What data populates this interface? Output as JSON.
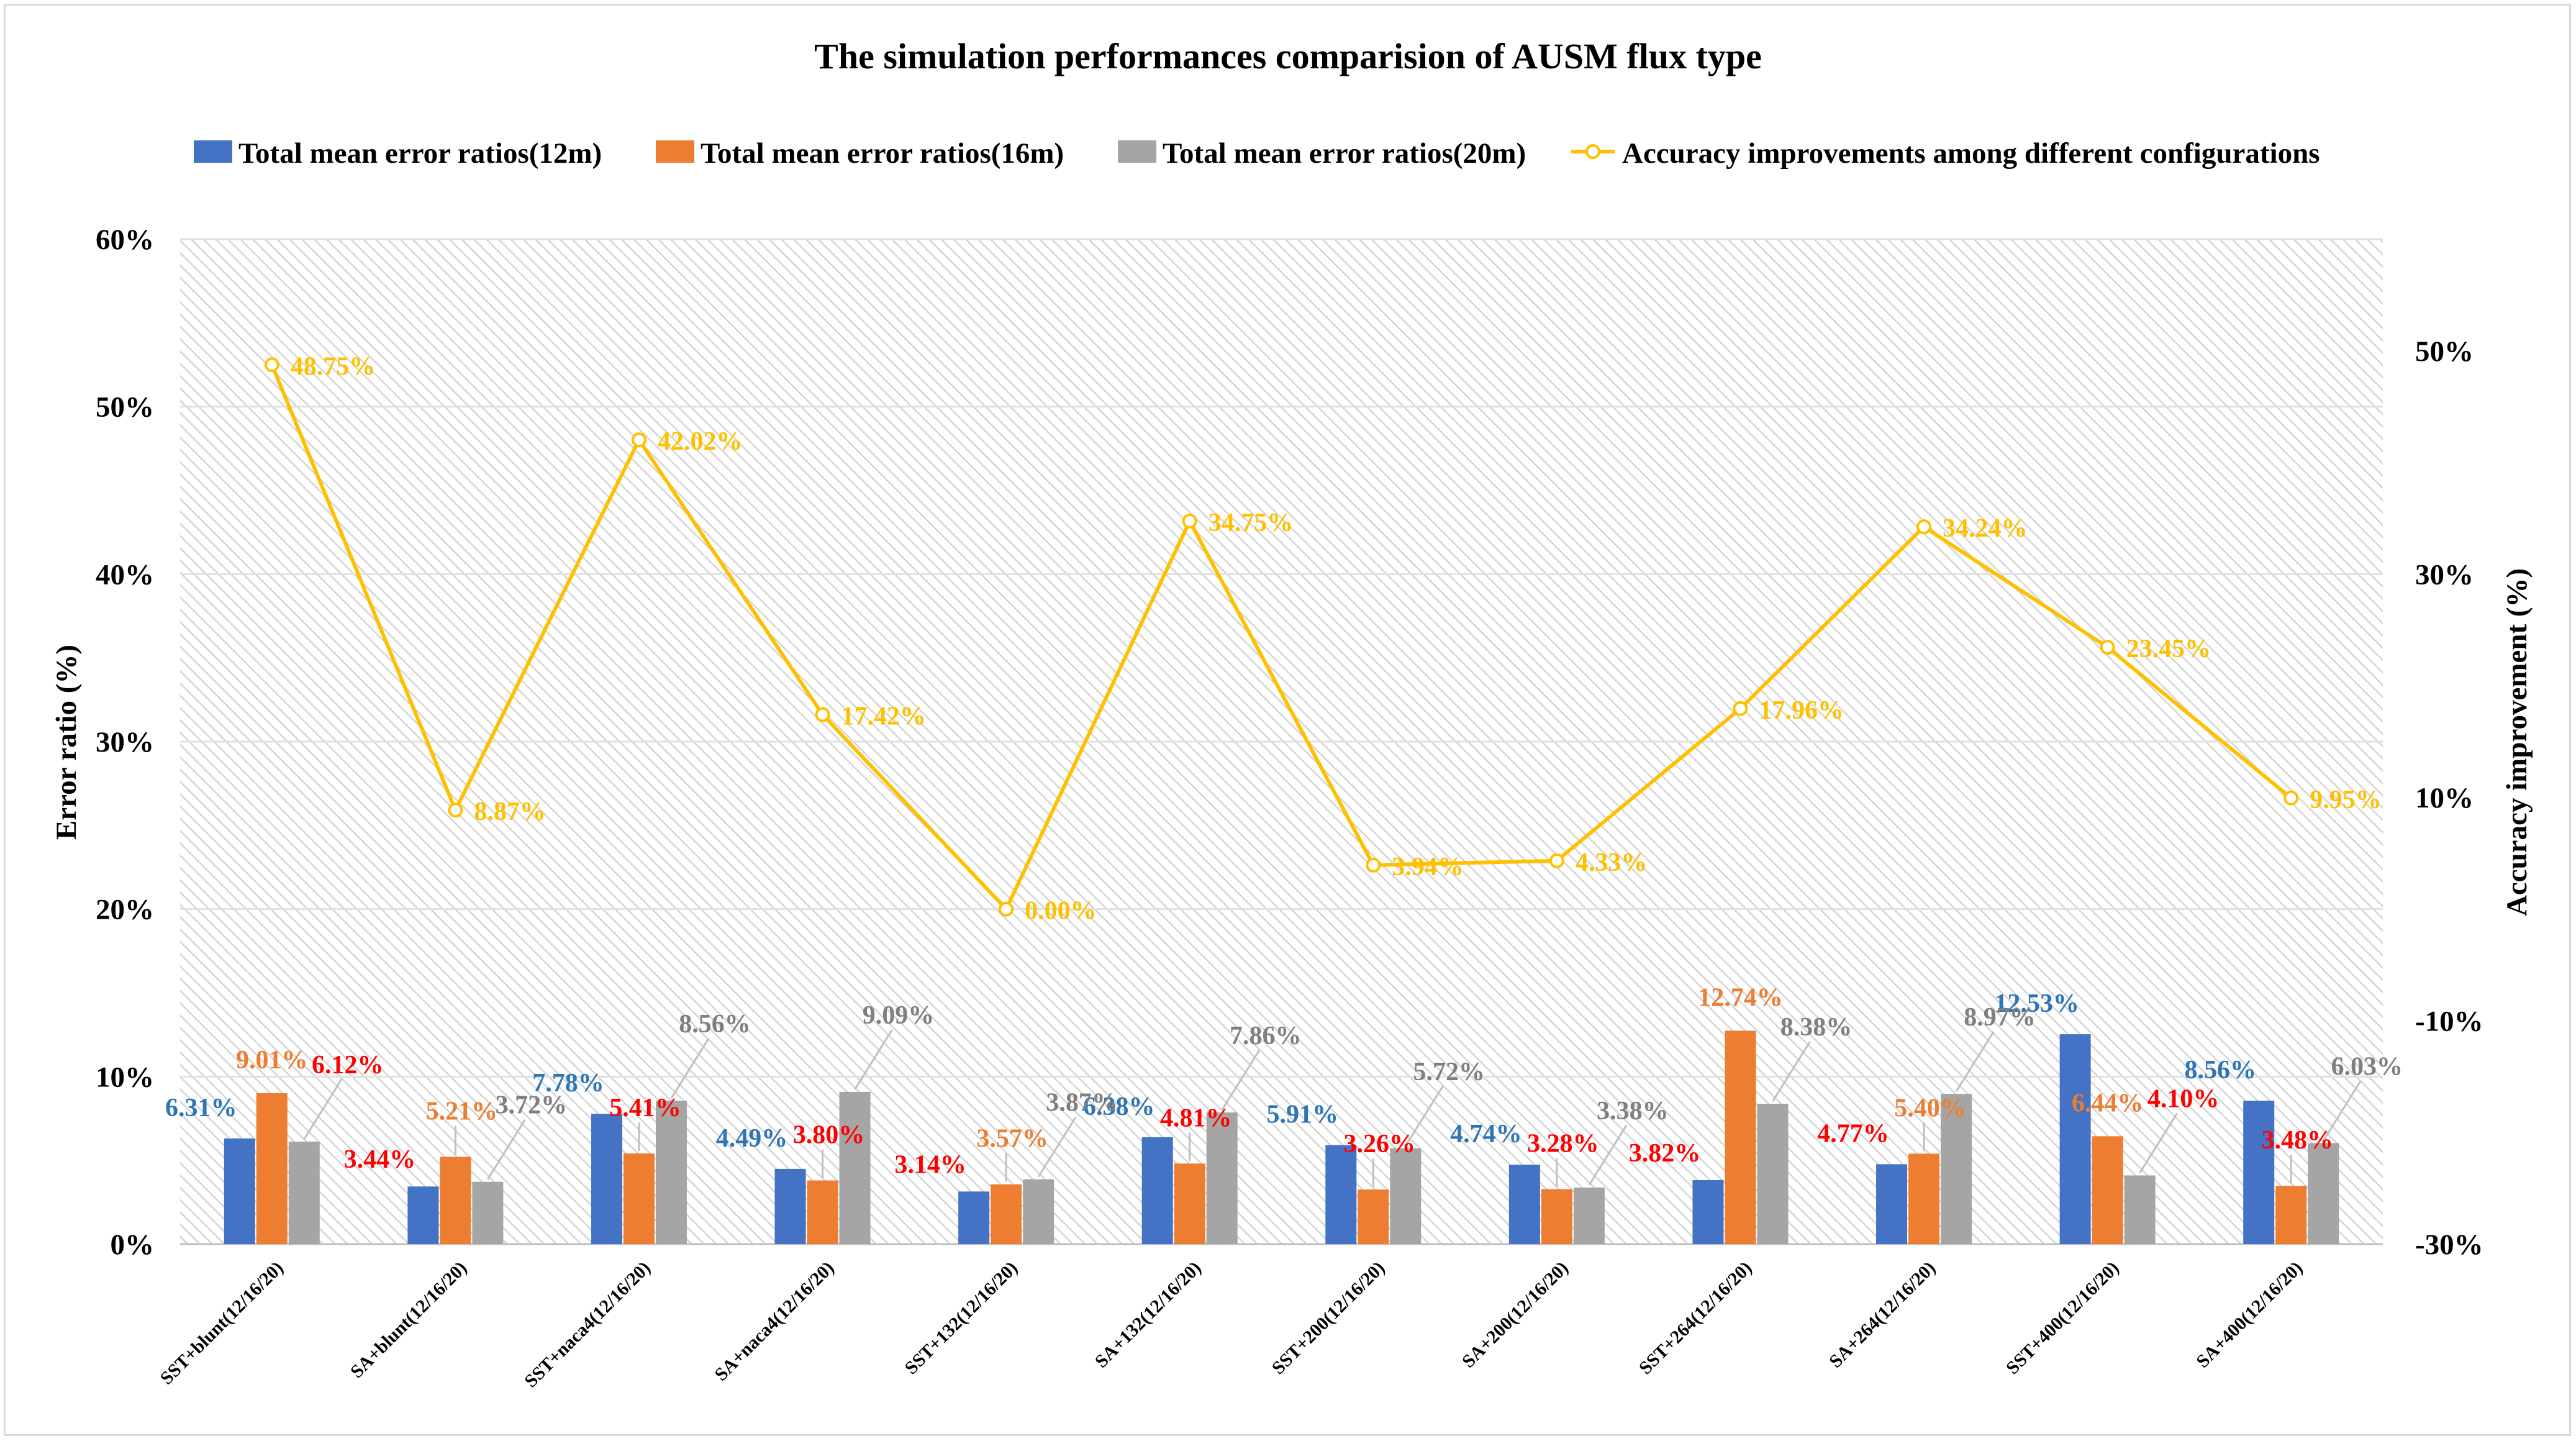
{
  "chart_data": {
    "type": "bar",
    "title": "The simulation performances comparision of AUSM flux type",
    "ylabel": "Error ratio (%)",
    "y2label": "Accuracy improvement (%)",
    "ylim": [
      0,
      60
    ],
    "y2lim": [
      -30,
      60
    ],
    "yticks": [
      "0%",
      "10%",
      "20%",
      "30%",
      "40%",
      "50%",
      "60%"
    ],
    "y2ticks": [
      "-30%",
      "-10%",
      "10%",
      "30%",
      "50%"
    ],
    "grid": true,
    "legend_position": "top",
    "categories": [
      "SST+blunt(12/16/20)",
      "SA+blunt(12/16/20)",
      "SST+naca4(12/16/20)",
      "SA+naca4(12/16/20)",
      "SST+132(12/16/20)",
      "SA+132(12/16/20)",
      "SST+200(12/16/20)",
      "SA+200(12/16/20)",
      "SST+264(12/16/20)",
      "SA+264(12/16/20)",
      "SST+400(12/16/20)",
      "SA+400(12/16/20)"
    ],
    "series": [
      {
        "name": "Total mean error ratios(12m)",
        "type": "bar",
        "axis": "left",
        "color": "#4472c4",
        "values": [
          6.31,
          3.44,
          7.78,
          4.49,
          3.14,
          6.38,
          5.91,
          4.74,
          3.82,
          4.77,
          12.53,
          8.56
        ],
        "labels": [
          "6.31%",
          "3.44%",
          "7.78%",
          "4.49%",
          "3.14%",
          "6.38%",
          "5.91%",
          "4.74%",
          "3.82%",
          "4.77%",
          "12.53%",
          "8.56%"
        ],
        "label_colors": [
          "#2e75b6",
          "#ff0000",
          "#2e75b6",
          "#2e75b6",
          "#ff0000",
          "#2e75b6",
          "#2e75b6",
          "#2e75b6",
          "#ff0000",
          "#ff0000",
          "#2e75b6",
          "#2e75b6"
        ]
      },
      {
        "name": "Total mean error ratios(16m)",
        "type": "bar",
        "axis": "left",
        "color": "#ed7d31",
        "values": [
          9.01,
          5.21,
          5.41,
          3.8,
          3.57,
          4.81,
          3.26,
          3.28,
          12.74,
          5.4,
          6.44,
          3.48
        ],
        "labels": [
          "9.01%",
          "5.21%",
          "5.41%",
          "3.80%",
          "3.57%",
          "4.81%",
          "3.26%",
          "3.28%",
          "12.74%",
          "5.40%",
          "6.44%",
          "3.48%"
        ],
        "label_colors": [
          "#ed7d31",
          "#ed7d31",
          "#ff0000",
          "#ff0000",
          "#ed7d31",
          "#ff0000",
          "#ff0000",
          "#ff0000",
          "#ed7d31",
          "#ed7d31",
          "#ed7d31",
          "#ff0000"
        ]
      },
      {
        "name": "Total mean error ratios(20m)",
        "type": "bar",
        "axis": "left",
        "color": "#a5a5a5",
        "values": [
          6.12,
          3.72,
          8.56,
          9.09,
          3.87,
          7.86,
          5.72,
          3.38,
          8.38,
          8.97,
          4.1,
          6.03
        ],
        "labels": [
          "6.12%",
          "3.72%",
          "8.56%",
          "9.09%",
          "3.87%",
          "7.86%",
          "5.72%",
          "3.38%",
          "8.38%",
          "8.97%",
          "4.10%",
          "6.03%"
        ],
        "label_colors": [
          "#ff0000",
          "#7f7f7f",
          "#7f7f7f",
          "#7f7f7f",
          "#7f7f7f",
          "#7f7f7f",
          "#7f7f7f",
          "#7f7f7f",
          "#7f7f7f",
          "#7f7f7f",
          "#ff0000",
          "#7f7f7f"
        ]
      },
      {
        "name": "Accuracy improvements among different configurations",
        "type": "line",
        "axis": "right",
        "color": "#ffc000",
        "values": [
          48.75,
          8.87,
          42.02,
          17.42,
          0.0,
          34.75,
          3.94,
          4.33,
          17.96,
          34.24,
          23.45,
          9.95
        ],
        "labels": [
          "48.75%",
          "8.87%",
          "42.02%",
          "17.42%",
          "0.00%",
          "34.75%",
          "3.94%",
          "4.33%",
          "17.96%",
          "34.24%",
          "23.45%",
          "9.95%"
        ]
      }
    ]
  }
}
